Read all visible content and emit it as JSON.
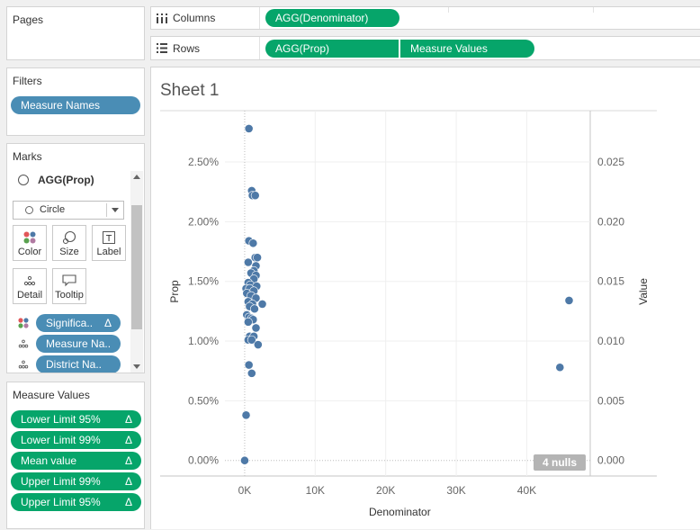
{
  "pages": {
    "title": "Pages"
  },
  "filters": {
    "title": "Filters",
    "pill": "Measure Names"
  },
  "marks": {
    "title": "Marks",
    "measure": "AGG(Prop)",
    "type": "Circle",
    "buttons": {
      "color": "Color",
      "size": "Size",
      "label": "Label",
      "detail": "Detail",
      "tooltip": "Tooltip"
    },
    "fields": [
      {
        "label": "Significa..",
        "delta": "Δ"
      },
      {
        "label": "Measure Na.."
      },
      {
        "label": "District Na.."
      }
    ]
  },
  "measure_values": {
    "title": "Measure Values",
    "pills": [
      {
        "label": "Lower Limit 95%",
        "delta": "Δ"
      },
      {
        "label": "Lower Limit 99%",
        "delta": "Δ"
      },
      {
        "label": "Mean value",
        "delta": "Δ"
      },
      {
        "label": "Upper Limit  99%",
        "delta": "Δ"
      },
      {
        "label": "Upper Limit 95%",
        "delta": "Δ"
      }
    ]
  },
  "columns": {
    "label": "Columns",
    "pill": "AGG(Denominator)"
  },
  "rows": {
    "label": "Rows",
    "pills": [
      "AGG(Prop)",
      "Measure Values"
    ]
  },
  "sheet": {
    "title": "Sheet 1",
    "nulls": "4 nulls"
  },
  "colors": {
    "mark": "#4e79a7",
    "green": "#06a56a",
    "blue": "#4a8db5"
  },
  "chart_data": {
    "type": "scatter",
    "title": "",
    "xlabel": "Denominator",
    "ylabel": "Prop",
    "y2label": "Value",
    "xlim": [
      -2800,
      49000
    ],
    "ylim": [
      -0.001,
      0.0293
    ],
    "x_ticks": [
      0,
      10000,
      20000,
      30000,
      40000
    ],
    "x_tick_labels": [
      "0K",
      "10K",
      "20K",
      "30K",
      "40K"
    ],
    "y_ticks": [
      0,
      0.005,
      0.01,
      0.015,
      0.02,
      0.025
    ],
    "y_tick_labels": [
      "0.00%",
      "0.50%",
      "1.00%",
      "1.50%",
      "2.00%",
      "2.50%"
    ],
    "y2_tick_labels": [
      "0.000",
      "0.005",
      "0.010",
      "0.015",
      "0.020",
      "0.025"
    ],
    "points": [
      [
        600,
        0.0278
      ],
      [
        1000,
        0.0226
      ],
      [
        1100,
        0.0222
      ],
      [
        1500,
        0.0222
      ],
      [
        600,
        0.0184
      ],
      [
        1200,
        0.0182
      ],
      [
        500,
        0.0166
      ],
      [
        1500,
        0.017
      ],
      [
        1800,
        0.017
      ],
      [
        1600,
        0.0163
      ],
      [
        1300,
        0.0159
      ],
      [
        900,
        0.0157
      ],
      [
        1600,
        0.0155
      ],
      [
        1300,
        0.0152
      ],
      [
        500,
        0.0149
      ],
      [
        800,
        0.0147
      ],
      [
        1700,
        0.0146
      ],
      [
        200,
        0.0144
      ],
      [
        700,
        0.0144
      ],
      [
        1300,
        0.0142
      ],
      [
        300,
        0.014
      ],
      [
        900,
        0.0138
      ],
      [
        1600,
        0.0136
      ],
      [
        500,
        0.0133
      ],
      [
        1100,
        0.0131
      ],
      [
        2500,
        0.0131
      ],
      [
        700,
        0.0129
      ],
      [
        1400,
        0.0127
      ],
      [
        300,
        0.0122
      ],
      [
        600,
        0.012
      ],
      [
        1000,
        0.0119
      ],
      [
        1200,
        0.0118
      ],
      [
        500,
        0.0116
      ],
      [
        1600,
        0.0111
      ],
      [
        700,
        0.0104
      ],
      [
        1300,
        0.0104
      ],
      [
        500,
        0.0101
      ],
      [
        1000,
        0.0101
      ],
      [
        1900,
        0.0097
      ],
      [
        600,
        0.008
      ],
      [
        1000,
        0.0073
      ],
      [
        200,
        0.0038
      ],
      [
        0,
        0.0
      ],
      [
        46000,
        0.0134
      ],
      [
        44700,
        0.0078
      ]
    ]
  }
}
